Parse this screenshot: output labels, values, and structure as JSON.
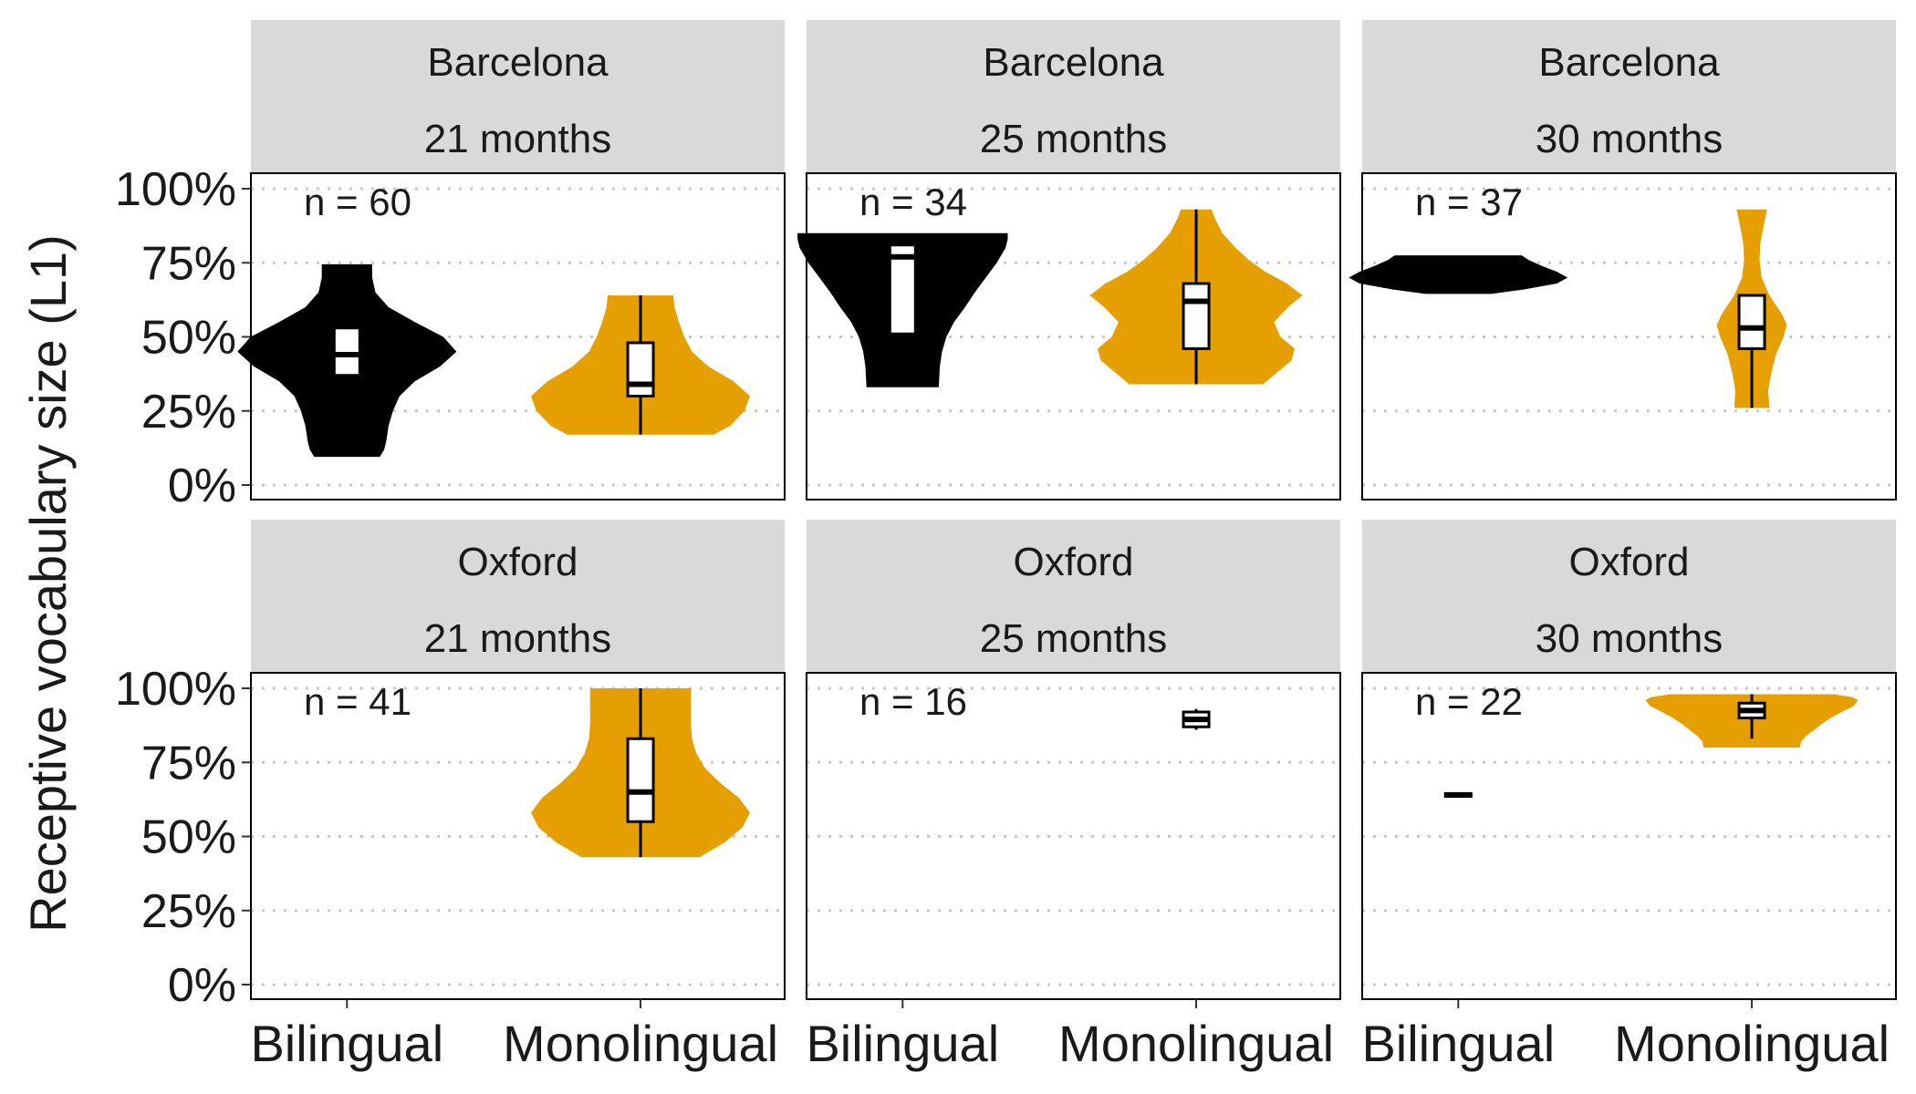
{
  "chart_data": {
    "type": "violin",
    "ylabel": "Receptive vocabulary size (L1)",
    "xlabel": "",
    "y_ticks": [
      "0%",
      "25%",
      "50%",
      "75%",
      "100%"
    ],
    "ylim": [
      0,
      100
    ],
    "grid": "horizontal dotted",
    "categories": [
      "Bilingual",
      "Monolingual"
    ],
    "colors": {
      "Bilingual": "#000000",
      "Monolingual": "#E69F00"
    },
    "facets": [
      {
        "site": "Barcelona",
        "age": "21 months",
        "n_label": "n = 60",
        "groups": [
          {
            "group": "Bilingual",
            "profile": [
              [
                9.5,
                0.3
              ],
              [
                12,
                0.34
              ],
              [
                15,
                0.36
              ],
              [
                20,
                0.38
              ],
              [
                25,
                0.42
              ],
              [
                30,
                0.48
              ],
              [
                35,
                0.62
              ],
              [
                40,
                0.85
              ],
              [
                45,
                1.0
              ],
              [
                50,
                0.88
              ],
              [
                55,
                0.62
              ],
              [
                60,
                0.38
              ],
              [
                65,
                0.26
              ],
              [
                70,
                0.23
              ],
              [
                74.5,
                0.23
              ]
            ],
            "box": {
              "q1": 37,
              "median": 44,
              "q3": 53,
              "lo": 37,
              "hi": 53
            }
          },
          {
            "group": "Monolingual",
            "profile": [
              [
                17,
                0.67
              ],
              [
                20,
                0.82
              ],
              [
                25,
                0.95
              ],
              [
                30,
                1.0
              ],
              [
                35,
                0.85
              ],
              [
                40,
                0.62
              ],
              [
                45,
                0.47
              ],
              [
                50,
                0.4
              ],
              [
                55,
                0.35
              ],
              [
                60,
                0.31
              ],
              [
                64,
                0.3
              ]
            ],
            "box": {
              "q1": 30,
              "median": 34,
              "q3": 48,
              "lo": 17,
              "hi": 64
            }
          }
        ]
      },
      {
        "site": "Barcelona",
        "age": "25 months",
        "n_label": "n = 34",
        "groups": [
          {
            "group": "Bilingual",
            "profile": [
              [
                33,
                0.33
              ],
              [
                40,
                0.34
              ],
              [
                45,
                0.36
              ],
              [
                50,
                0.4
              ],
              [
                55,
                0.47
              ],
              [
                60,
                0.57
              ],
              [
                65,
                0.66
              ],
              [
                70,
                0.76
              ],
              [
                75,
                0.86
              ],
              [
                80,
                0.94
              ],
              [
                83,
                0.96
              ],
              [
                85,
                0.96
              ]
            ],
            "box": {
              "q1": 51,
              "median": 77,
              "q3": 81,
              "lo": 51,
              "hi": 81
            }
          },
          {
            "group": "Monolingual",
            "profile": [
              [
                34,
                0.61
              ],
              [
                38,
                0.74
              ],
              [
                42,
                0.87
              ],
              [
                46,
                0.9
              ],
              [
                50,
                0.77
              ],
              [
                55,
                0.71
              ],
              [
                60,
                0.84
              ],
              [
                64,
                0.97
              ],
              [
                68,
                0.83
              ],
              [
                72,
                0.63
              ],
              [
                76,
                0.48
              ],
              [
                80,
                0.36
              ],
              [
                85,
                0.24
              ],
              [
                90,
                0.17
              ],
              [
                93,
                0.14
              ]
            ],
            "box": {
              "q1": 46,
              "median": 62,
              "q3": 68,
              "lo": 34,
              "hi": 93
            }
          }
        ]
      },
      {
        "site": "Barcelona",
        "age": "30 months",
        "n_label": "n = 37",
        "groups": [
          {
            "group": "Bilingual",
            "profile": [
              [
                64.5,
                0.3
              ],
              [
                66,
                0.6
              ],
              [
                68,
                0.9
              ],
              [
                70,
                1.0
              ],
              [
                72,
                0.9
              ],
              [
                74,
                0.76
              ],
              [
                76,
                0.64
              ],
              [
                77.5,
                0.58
              ]
            ],
            "box": {
              "q1": 72,
              "median": 72,
              "q3": 73,
              "lo": 72,
              "hi": 73
            }
          },
          {
            "group": "Monolingual",
            "profile": [
              [
                26,
                0.16
              ],
              [
                32,
                0.15
              ],
              [
                38,
                0.18
              ],
              [
                44,
                0.22
              ],
              [
                50,
                0.29
              ],
              [
                54,
                0.32
              ],
              [
                58,
                0.27
              ],
              [
                64,
                0.16
              ],
              [
                70,
                0.09
              ],
              [
                76,
                0.07
              ],
              [
                82,
                0.08
              ],
              [
                88,
                0.11
              ],
              [
                93,
                0.14
              ]
            ],
            "box": {
              "q1": 46,
              "median": 53,
              "q3": 64,
              "lo": 26,
              "hi": 64
            }
          }
        ]
      },
      {
        "site": "Oxford",
        "age": "21 months",
        "n_label": "n = 41",
        "groups": [
          {
            "group": "Bilingual",
            "profile": [],
            "box": null
          },
          {
            "group": "Monolingual",
            "profile": [
              [
                43,
                0.54
              ],
              [
                48,
                0.77
              ],
              [
                53,
                0.93
              ],
              [
                58,
                1.0
              ],
              [
                63,
                0.9
              ],
              [
                68,
                0.73
              ],
              [
                73,
                0.59
              ],
              [
                78,
                0.51
              ],
              [
                83,
                0.47
              ],
              [
                88,
                0.46
              ],
              [
                93,
                0.46
              ],
              [
                97,
                0.46
              ],
              [
                100,
                0.46
              ]
            ],
            "box": {
              "q1": 55,
              "median": 65,
              "q3": 83,
              "lo": 43,
              "hi": 100
            }
          }
        ]
      },
      {
        "site": "Oxford",
        "age": "25 months",
        "n_label": "n = 16",
        "groups": [
          {
            "group": "Bilingual",
            "profile": [],
            "box": null
          },
          {
            "group": "Monolingual",
            "profile": [],
            "box": {
              "q1": 87,
              "median": 89.5,
              "q3": 92,
              "lo": 86,
              "hi": 93
            }
          }
        ]
      },
      {
        "site": "Oxford",
        "age": "30 months",
        "n_label": "n = 22",
        "groups": [
          {
            "group": "Bilingual",
            "profile": [],
            "box": {
              "q1": 63.5,
              "median": 64,
              "q3": 64.5,
              "lo": 63.5,
              "hi": 64.5
            }
          },
          {
            "group": "Monolingual",
            "profile": [
              [
                80,
                0.44
              ],
              [
                82,
                0.45
              ],
              [
                84,
                0.5
              ],
              [
                86,
                0.57
              ],
              [
                88,
                0.64
              ],
              [
                90,
                0.72
              ],
              [
                92,
                0.82
              ],
              [
                94,
                0.93
              ],
              [
                96,
                0.97
              ],
              [
                97,
                0.92
              ],
              [
                98,
                0.75
              ]
            ],
            "box": {
              "q1": 90,
              "median": 92.5,
              "q3": 95,
              "lo": 83,
              "hi": 98
            }
          }
        ]
      }
    ]
  }
}
